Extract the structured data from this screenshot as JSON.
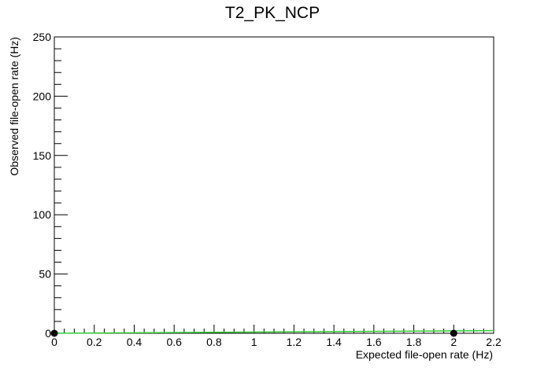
{
  "chart_data": {
    "type": "scatter",
    "title": "T2_PK_NCP",
    "xlabel": "Expected file-open rate (Hz)",
    "ylabel": "Observed file-open rate (Hz)",
    "xlim": [
      0,
      2.2
    ],
    "ylim": [
      0,
      250
    ],
    "x_tick_labels": [
      "0",
      "0.2",
      "0.4",
      "0.6",
      "0.8",
      "1",
      "1.2",
      "1.4",
      "1.6",
      "1.8",
      "2",
      "2.2"
    ],
    "y_tick_labels": [
      "0",
      "50",
      "100",
      "150",
      "200",
      "250"
    ],
    "grid": false,
    "series": [
      {
        "kind": "points",
        "color": "#000000",
        "x": [
          0,
          2
        ],
        "y": [
          0,
          0
        ]
      },
      {
        "kind": "line",
        "color": "#33cc33",
        "x": [
          0,
          2.2
        ],
        "y": [
          0,
          2.2
        ]
      }
    ]
  }
}
